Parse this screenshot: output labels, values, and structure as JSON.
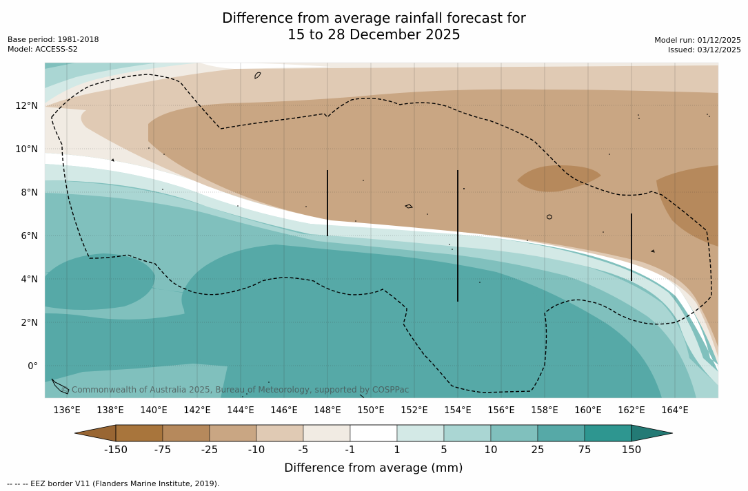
{
  "header": {
    "title_line1": "Difference from average rainfall forecast for",
    "title_line2": "15 to 28 December 2025",
    "base_period": "Base period: 1981-2018",
    "model": "Model: ACCESS-S2",
    "model_run": "Model run: 01/12/2025",
    "issued": "Issued: 03/12/2025"
  },
  "map": {
    "lat_labels": [
      "12°N",
      "10°N",
      "8°N",
      "6°N",
      "4°N",
      "2°N",
      "0°"
    ],
    "lon_labels": [
      "136°E",
      "138°E",
      "140°E",
      "142°E",
      "144°E",
      "146°E",
      "148°E",
      "150°E",
      "152°E",
      "154°E",
      "156°E",
      "158°E",
      "160°E",
      "162°E",
      "164°E"
    ],
    "copyright": "© Commonwealth of Australia 2025, Bureau of Meteorology, supported by COSPPac"
  },
  "colorbar": {
    "tick_labels": [
      "-150",
      "-75",
      "-25",
      "-10",
      "-5",
      "-1",
      "1",
      "5",
      "10",
      "25",
      "75",
      "150"
    ],
    "colors": [
      "#a8753c",
      "#b6895c",
      "#c9a683",
      "#e0cab4",
      "#f1ebe3",
      "#ffffff",
      "#d3e9e6",
      "#aad6d3",
      "#80c0bd",
      "#56a9a7",
      "#2e9690"
    ],
    "title": "Difference from average (mm)"
  },
  "footer": {
    "legend_text": "--  --  -- EEZ border V11 (Flanders Marine Institute, 2019)."
  }
}
